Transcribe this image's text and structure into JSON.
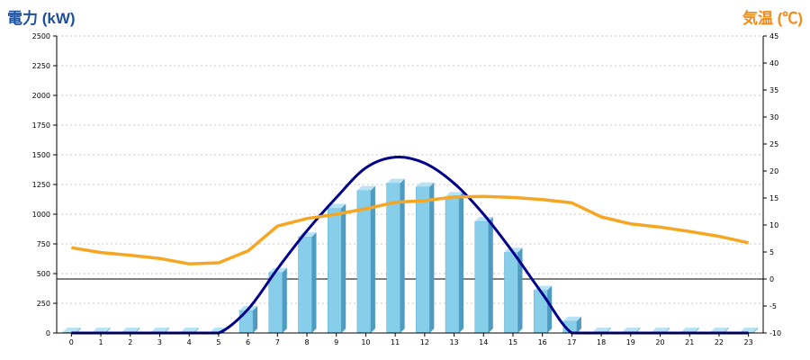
{
  "chart_data": {
    "type": "bar",
    "y_left_title": "電力 (kW)",
    "y_right_title": "気温 (℃)",
    "categories": [
      "0",
      "1",
      "2",
      "3",
      "4",
      "5",
      "6",
      "7",
      "8",
      "9",
      "10",
      "11",
      "12",
      "13",
      "14",
      "15",
      "16",
      "17",
      "18",
      "19",
      "20",
      "21",
      "22",
      "23"
    ],
    "y_left_ticks": [
      "0",
      "250",
      "500",
      "750",
      "1000",
      "1250",
      "1500",
      "1750",
      "2000",
      "2250",
      "2500"
    ],
    "y_right_ticks": [
      "-10",
      "-5",
      "0",
      "5",
      "10",
      "15",
      "20",
      "25",
      "30",
      "35",
      "40",
      "45"
    ],
    "ylim_left": [
      0,
      2500
    ],
    "ylim_right": [
      -10,
      45
    ],
    "grid": true,
    "series": [
      {
        "kind": "bar",
        "axis": "left",
        "color": "#87ceeb",
        "values": [
          0,
          0,
          0,
          0,
          0,
          0,
          190,
          510,
          810,
          1050,
          1200,
          1260,
          1230,
          1150,
          940,
          680,
          360,
          100,
          0,
          0,
          0,
          0,
          0,
          0
        ]
      },
      {
        "kind": "line-smooth",
        "axis": "left",
        "color": "#00008b",
        "values": [
          0,
          0,
          0,
          0,
          0,
          0,
          200,
          540,
          860,
          1140,
          1390,
          1480,
          1430,
          1260,
          1000,
          680,
          330,
          0,
          0,
          0,
          0,
          0,
          0,
          0
        ]
      },
      {
        "kind": "line",
        "axis": "right",
        "color": "#f5a623",
        "values": [
          5.8,
          4.9,
          4.4,
          3.8,
          2.8,
          3.0,
          5.2,
          9.8,
          11.2,
          12.0,
          13.0,
          14.2,
          14.5,
          15.2,
          15.3,
          15.1,
          14.7,
          14.1,
          11.5,
          10.2,
          9.6,
          8.8,
          7.9,
          6.7
        ]
      }
    ],
    "reference_line": {
      "axis": "right",
      "value": 0,
      "color": "#000000"
    }
  }
}
